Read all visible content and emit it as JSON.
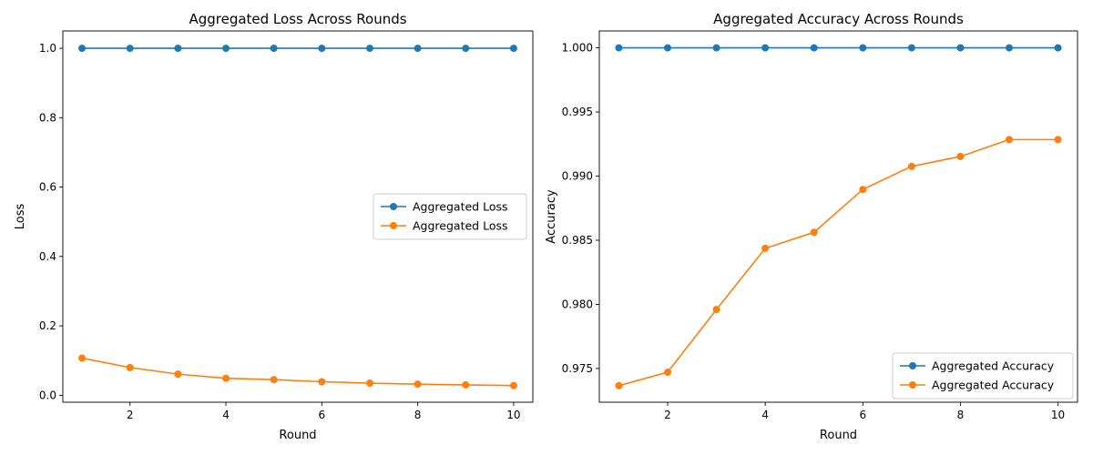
{
  "chart_data": [
    {
      "type": "line",
      "title": "Aggregated Loss Across Rounds",
      "xlabel": "Round",
      "ylabel": "Loss",
      "xlim": [
        0.6,
        10.4
      ],
      "ylim": [
        -0.02,
        1.05
      ],
      "xticks": [
        2,
        4,
        6,
        8,
        10
      ],
      "yticks": [
        0.0,
        0.2,
        0.4,
        0.6,
        0.8,
        1.0
      ],
      "ytick_labels": [
        "0.0",
        "0.2",
        "0.4",
        "0.6",
        "0.8",
        "1.0"
      ],
      "grid": false,
      "legend_position": "center-right",
      "x": [
        1,
        2,
        3,
        4,
        5,
        6,
        7,
        8,
        9,
        10
      ],
      "series": [
        {
          "name": "Aggregated Loss",
          "color": "#1f77b4",
          "values": [
            1.0,
            1.0,
            1.0,
            1.0,
            1.0,
            1.0,
            1.0,
            1.0,
            1.0,
            1.0
          ]
        },
        {
          "name": "Aggregated Loss",
          "color": "#ff7f0e",
          "values": [
            0.107,
            0.08,
            0.061,
            0.049,
            0.045,
            0.039,
            0.035,
            0.032,
            0.03,
            0.028
          ]
        }
      ]
    },
    {
      "type": "line",
      "title": "Aggregated Accuracy Across Rounds",
      "xlabel": "Round",
      "ylabel": "Accuracy",
      "xlim": [
        0.6,
        10.4
      ],
      "ylim": [
        0.97237,
        1.00132
      ],
      "xticks": [
        2,
        4,
        6,
        8,
        10
      ],
      "yticks": [
        0.975,
        0.98,
        0.985,
        0.99,
        0.995,
        1.0
      ],
      "ytick_labels": [
        "0.975",
        "0.980",
        "0.985",
        "0.990",
        "0.995",
        "1.000"
      ],
      "grid": false,
      "legend_position": "lower-right",
      "x": [
        1,
        2,
        3,
        4,
        5,
        6,
        7,
        8,
        9,
        10
      ],
      "series": [
        {
          "name": "Aggregated Accuracy",
          "color": "#1f77b4",
          "values": [
            1.0,
            1.0,
            1.0,
            1.0,
            1.0,
            1.0,
            1.0,
            1.0,
            1.0,
            1.0
          ]
        },
        {
          "name": "Aggregated Accuracy",
          "color": "#ff7f0e",
          "values": [
            0.97366,
            0.97471,
            0.9796,
            0.98437,
            0.98562,
            0.98896,
            0.99076,
            0.99153,
            0.99285,
            0.99285
          ]
        }
      ]
    }
  ]
}
